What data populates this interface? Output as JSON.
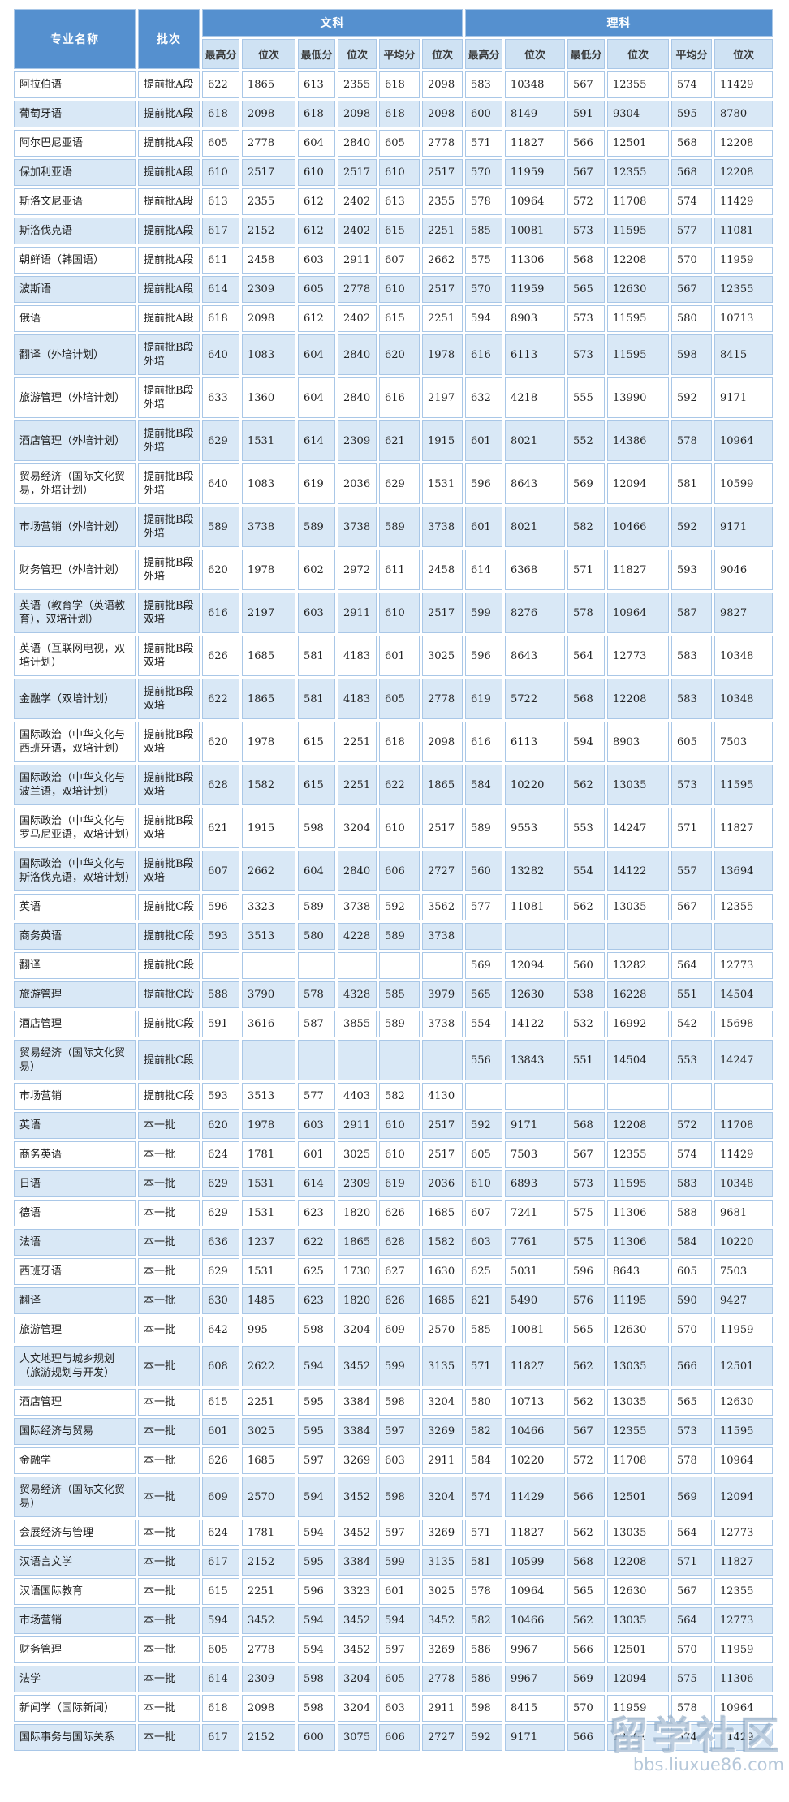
{
  "watermark": {
    "line1": "留学社区",
    "line2": "bbs.liuxue86.com"
  },
  "colors": {
    "header_blue": "#5590cf",
    "subheader_blue": "#cfe2f3",
    "row_alt_blue": "#d9e8f6",
    "border_blue": "#a9c7e7"
  },
  "table": {
    "col_name": "专业名称",
    "col_batch": "批次",
    "group_arts": "文科",
    "group_science": "理科",
    "sub_headers": [
      "最高分",
      "位次",
      "最低分",
      "位次",
      "平均分",
      "位次"
    ],
    "rows": [
      {
        "name": "阿拉伯语",
        "batch": "提前批A段",
        "values": [
          "622",
          "1865",
          "613",
          "2355",
          "618",
          "2098",
          "583",
          "10348",
          "567",
          "12355",
          "574",
          "11429"
        ]
      },
      {
        "name": "葡萄牙语",
        "batch": "提前批A段",
        "values": [
          "618",
          "2098",
          "618",
          "2098",
          "618",
          "2098",
          "600",
          "8149",
          "591",
          "9304",
          "595",
          "8780"
        ]
      },
      {
        "name": "阿尔巴尼亚语",
        "batch": "提前批A段",
        "values": [
          "605",
          "2778",
          "604",
          "2840",
          "605",
          "2778",
          "571",
          "11827",
          "566",
          "12501",
          "568",
          "12208"
        ]
      },
      {
        "name": "保加利亚语",
        "batch": "提前批A段",
        "values": [
          "610",
          "2517",
          "610",
          "2517",
          "610",
          "2517",
          "570",
          "11959",
          "567",
          "12355",
          "568",
          "12208"
        ]
      },
      {
        "name": "斯洛文尼亚语",
        "batch": "提前批A段",
        "values": [
          "613",
          "2355",
          "612",
          "2402",
          "613",
          "2355",
          "578",
          "10964",
          "572",
          "11708",
          "574",
          "11429"
        ]
      },
      {
        "name": "斯洛伐克语",
        "batch": "提前批A段",
        "values": [
          "617",
          "2152",
          "612",
          "2402",
          "615",
          "2251",
          "585",
          "10081",
          "573",
          "11595",
          "577",
          "11081"
        ]
      },
      {
        "name": "朝鲜语（韩国语）",
        "batch": "提前批A段",
        "values": [
          "611",
          "2458",
          "603",
          "2911",
          "607",
          "2662",
          "575",
          "11306",
          "568",
          "12208",
          "570",
          "11959"
        ]
      },
      {
        "name": "波斯语",
        "batch": "提前批A段",
        "values": [
          "614",
          "2309",
          "605",
          "2778",
          "610",
          "2517",
          "570",
          "11959",
          "565",
          "12630",
          "567",
          "12355"
        ]
      },
      {
        "name": "俄语",
        "batch": "提前批A段",
        "values": [
          "618",
          "2098",
          "612",
          "2402",
          "615",
          "2251",
          "594",
          "8903",
          "573",
          "11595",
          "580",
          "10713"
        ]
      },
      {
        "name": "翻译（外培计划）",
        "batch": "提前批B段\n外培",
        "values": [
          "640",
          "1083",
          "604",
          "2840",
          "620",
          "1978",
          "616",
          "6113",
          "573",
          "11595",
          "598",
          "8415"
        ]
      },
      {
        "name": "旅游管理（外培计划）",
        "batch": "提前批B段\n外培",
        "values": [
          "633",
          "1360",
          "604",
          "2840",
          "616",
          "2197",
          "632",
          "4218",
          "555",
          "13990",
          "592",
          "9171"
        ]
      },
      {
        "name": "酒店管理（外培计划）",
        "batch": "提前批B段\n外培",
        "values": [
          "629",
          "1531",
          "614",
          "2309",
          "621",
          "1915",
          "601",
          "8021",
          "552",
          "14386",
          "578",
          "10964"
        ]
      },
      {
        "name": "贸易经济（国际文化贸易，外培计划）",
        "batch": "提前批B段\n外培",
        "values": [
          "640",
          "1083",
          "619",
          "2036",
          "629",
          "1531",
          "596",
          "8643",
          "569",
          "12094",
          "581",
          "10599"
        ]
      },
      {
        "name": "市场营销（外培计划）",
        "batch": "提前批B段\n外培",
        "values": [
          "589",
          "3738",
          "589",
          "3738",
          "589",
          "3738",
          "601",
          "8021",
          "582",
          "10466",
          "592",
          "9171"
        ]
      },
      {
        "name": "财务管理（外培计划）",
        "batch": "提前批B段\n外培",
        "values": [
          "620",
          "1978",
          "602",
          "2972",
          "611",
          "2458",
          "614",
          "6368",
          "571",
          "11827",
          "593",
          "9046"
        ]
      },
      {
        "name": "英语（教育学（英语教育），双培计划）",
        "batch": "提前批B段\n双培",
        "values": [
          "616",
          "2197",
          "603",
          "2911",
          "610",
          "2517",
          "599",
          "8276",
          "578",
          "10964",
          "587",
          "9827"
        ]
      },
      {
        "name": "英语（互联网电视，双培计划）",
        "batch": "提前批B段\n双培",
        "values": [
          "626",
          "1685",
          "581",
          "4183",
          "601",
          "3025",
          "596",
          "8643",
          "564",
          "12773",
          "583",
          "10348"
        ]
      },
      {
        "name": "金融学（双培计划）",
        "batch": "提前批B段\n双培",
        "values": [
          "622",
          "1865",
          "581",
          "4183",
          "605",
          "2778",
          "619",
          "5722",
          "568",
          "12208",
          "583",
          "10348"
        ]
      },
      {
        "name": "国际政治（中华文化与西班牙语，双培计划）",
        "batch": "提前批B段\n双培",
        "values": [
          "620",
          "1978",
          "615",
          "2251",
          "618",
          "2098",
          "616",
          "6113",
          "594",
          "8903",
          "605",
          "7503"
        ]
      },
      {
        "name": "国际政治（中华文化与波兰语，双培计划）",
        "batch": "提前批B段\n双培",
        "values": [
          "628",
          "1582",
          "615",
          "2251",
          "622",
          "1865",
          "584",
          "10220",
          "562",
          "13035",
          "573",
          "11595"
        ]
      },
      {
        "name": "国际政治（中华文化与罗马尼亚语，双培计划）",
        "batch": "提前批B段\n双培",
        "values": [
          "621",
          "1915",
          "598",
          "3204",
          "610",
          "2517",
          "589",
          "9553",
          "553",
          "14247",
          "571",
          "11827"
        ]
      },
      {
        "name": "国际政治（中华文化与斯洛伐克语，双培计划）",
        "batch": "提前批B段\n双培",
        "values": [
          "607",
          "2662",
          "604",
          "2840",
          "606",
          "2727",
          "560",
          "13282",
          "554",
          "14122",
          "557",
          "13694"
        ]
      },
      {
        "name": "英语",
        "batch": "提前批C段",
        "values": [
          "596",
          "3323",
          "589",
          "3738",
          "592",
          "3562",
          "577",
          "11081",
          "562",
          "13035",
          "567",
          "12355"
        ]
      },
      {
        "name": "商务英语",
        "batch": "提前批C段",
        "values": [
          "593",
          "3513",
          "580",
          "4228",
          "589",
          "3738",
          "",
          "",
          "",
          "",
          "",
          ""
        ]
      },
      {
        "name": "翻译",
        "batch": "提前批C段",
        "values": [
          "",
          "",
          "",
          "",
          "",
          "",
          "569",
          "12094",
          "560",
          "13282",
          "564",
          "12773"
        ]
      },
      {
        "name": "旅游管理",
        "batch": "提前批C段",
        "values": [
          "588",
          "3790",
          "578",
          "4328",
          "585",
          "3979",
          "565",
          "12630",
          "538",
          "16228",
          "551",
          "14504"
        ]
      },
      {
        "name": "酒店管理",
        "batch": "提前批C段",
        "values": [
          "591",
          "3616",
          "587",
          "3855",
          "589",
          "3738",
          "554",
          "14122",
          "532",
          "16992",
          "542",
          "15698"
        ]
      },
      {
        "name": "贸易经济（国际文化贸易）",
        "batch": "提前批C段",
        "values": [
          "",
          "",
          "",
          "",
          "",
          "",
          "556",
          "13843",
          "551",
          "14504",
          "553",
          "14247"
        ]
      },
      {
        "name": "市场营销",
        "batch": "提前批C段",
        "values": [
          "593",
          "3513",
          "577",
          "4403",
          "582",
          "4130",
          "",
          "",
          "",
          "",
          "",
          ""
        ]
      },
      {
        "name": "英语",
        "batch": "本一批",
        "values": [
          "620",
          "1978",
          "603",
          "2911",
          "610",
          "2517",
          "592",
          "9171",
          "568",
          "12208",
          "572",
          "11708"
        ]
      },
      {
        "name": "商务英语",
        "batch": "本一批",
        "values": [
          "624",
          "1781",
          "601",
          "3025",
          "610",
          "2517",
          "605",
          "7503",
          "567",
          "12355",
          "574",
          "11429"
        ]
      },
      {
        "name": "日语",
        "batch": "本一批",
        "values": [
          "629",
          "1531",
          "614",
          "2309",
          "619",
          "2036",
          "610",
          "6893",
          "573",
          "11595",
          "583",
          "10348"
        ]
      },
      {
        "name": "德语",
        "batch": "本一批",
        "values": [
          "629",
          "1531",
          "623",
          "1820",
          "626",
          "1685",
          "607",
          "7241",
          "575",
          "11306",
          "588",
          "9681"
        ]
      },
      {
        "name": "法语",
        "batch": "本一批",
        "values": [
          "636",
          "1237",
          "622",
          "1865",
          "628",
          "1582",
          "603",
          "7761",
          "575",
          "11306",
          "584",
          "10220"
        ]
      },
      {
        "name": "西班牙语",
        "batch": "本一批",
        "values": [
          "629",
          "1531",
          "625",
          "1730",
          "627",
          "1630",
          "625",
          "5031",
          "596",
          "8643",
          "605",
          "7503"
        ]
      },
      {
        "name": "翻译",
        "batch": "本一批",
        "values": [
          "630",
          "1485",
          "623",
          "1820",
          "626",
          "1685",
          "621",
          "5490",
          "576",
          "11195",
          "590",
          "9427"
        ]
      },
      {
        "name": "旅游管理",
        "batch": "本一批",
        "values": [
          "642",
          "995",
          "598",
          "3204",
          "609",
          "2570",
          "585",
          "10081",
          "565",
          "12630",
          "570",
          "11959"
        ]
      },
      {
        "name": "人文地理与城乡规划（旅游规划与开发）",
        "batch": "本一批",
        "values": [
          "608",
          "2622",
          "594",
          "3452",
          "599",
          "3135",
          "571",
          "11827",
          "562",
          "13035",
          "566",
          "12501"
        ]
      },
      {
        "name": "酒店管理",
        "batch": "本一批",
        "values": [
          "615",
          "2251",
          "595",
          "3384",
          "598",
          "3204",
          "580",
          "10713",
          "562",
          "13035",
          "565",
          "12630"
        ]
      },
      {
        "name": "国际经济与贸易",
        "batch": "本一批",
        "values": [
          "601",
          "3025",
          "595",
          "3384",
          "597",
          "3269",
          "582",
          "10466",
          "567",
          "12355",
          "573",
          "11595"
        ]
      },
      {
        "name": "金融学",
        "batch": "本一批",
        "values": [
          "626",
          "1685",
          "597",
          "3269",
          "603",
          "2911",
          "584",
          "10220",
          "572",
          "11708",
          "578",
          "10964"
        ]
      },
      {
        "name": "贸易经济（国际文化贸易）",
        "batch": "本一批",
        "values": [
          "609",
          "2570",
          "594",
          "3452",
          "598",
          "3204",
          "574",
          "11429",
          "566",
          "12501",
          "569",
          "12094"
        ]
      },
      {
        "name": "会展经济与管理",
        "batch": "本一批",
        "values": [
          "624",
          "1781",
          "594",
          "3452",
          "597",
          "3269",
          "571",
          "11827",
          "562",
          "13035",
          "564",
          "12773"
        ]
      },
      {
        "name": "汉语言文学",
        "batch": "本一批",
        "values": [
          "617",
          "2152",
          "595",
          "3384",
          "599",
          "3135",
          "581",
          "10599",
          "568",
          "12208",
          "571",
          "11827"
        ]
      },
      {
        "name": "汉语国际教育",
        "batch": "本一批",
        "values": [
          "615",
          "2251",
          "596",
          "3323",
          "601",
          "3025",
          "578",
          "10964",
          "565",
          "12630",
          "567",
          "12355"
        ]
      },
      {
        "name": "市场营销",
        "batch": "本一批",
        "values": [
          "594",
          "3452",
          "594",
          "3452",
          "594",
          "3452",
          "582",
          "10466",
          "562",
          "13035",
          "564",
          "12773"
        ]
      },
      {
        "name": "财务管理",
        "batch": "本一批",
        "values": [
          "605",
          "2778",
          "594",
          "3452",
          "597",
          "3269",
          "586",
          "9967",
          "566",
          "12501",
          "570",
          "11959"
        ]
      },
      {
        "name": "法学",
        "batch": "本一批",
        "values": [
          "614",
          "2309",
          "598",
          "3204",
          "605",
          "2778",
          "586",
          "9967",
          "569",
          "12094",
          "575",
          "11306"
        ]
      },
      {
        "name": "新闻学（国际新闻）",
        "batch": "本一批",
        "values": [
          "618",
          "2098",
          "598",
          "3204",
          "603",
          "2911",
          "598",
          "8415",
          "570",
          "11959",
          "578",
          "10964"
        ]
      },
      {
        "name": "国际事务与国际关系",
        "batch": "本一批",
        "values": [
          "617",
          "2152",
          "600",
          "3075",
          "606",
          "2727",
          "592",
          "9171",
          "566",
          "12501",
          "574",
          "11429"
        ]
      }
    ]
  }
}
